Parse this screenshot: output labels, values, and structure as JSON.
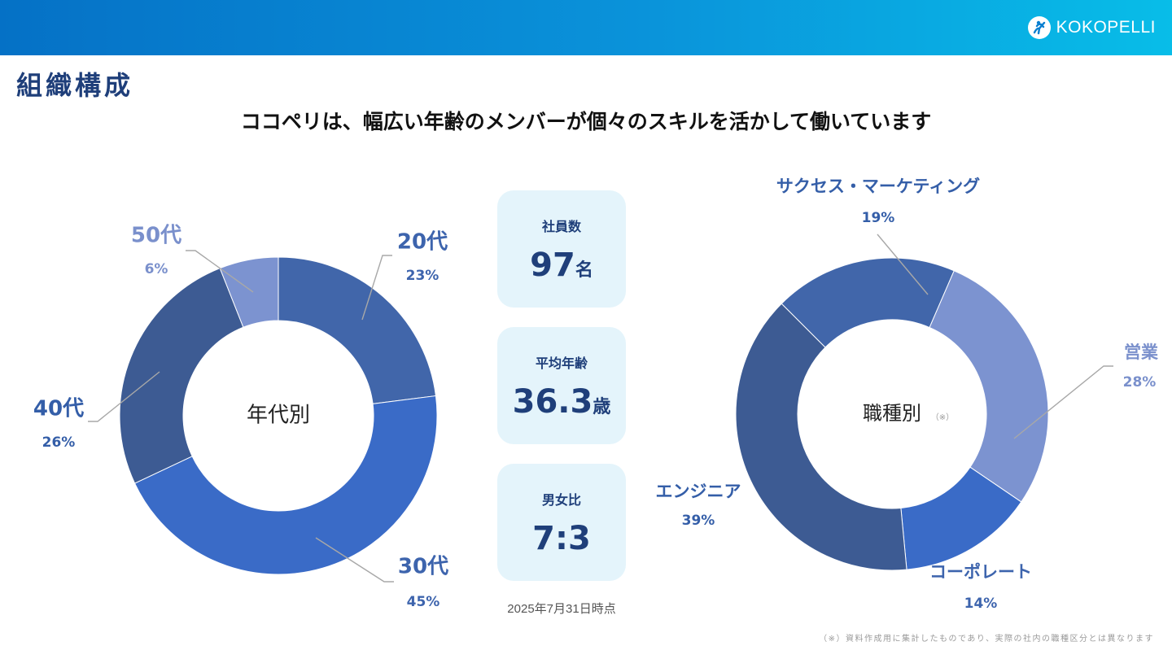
{
  "header": {
    "logo_text": "KOKOPELLI",
    "logo_icon": "kokopelli-mark-icon",
    "colors": {
      "gradient_start": "#0571c6",
      "gradient_end": "#08bde8"
    }
  },
  "page": {
    "title": "組織構成",
    "subtitle": "ココペリは、幅広い年齢のメンバーが個々のスキルを活かして働いています"
  },
  "stats": [
    {
      "label": "社員数",
      "value": "97",
      "unit": "名"
    },
    {
      "label": "平均年齢",
      "value": "36.3",
      "unit": "歳"
    },
    {
      "label": "男女比",
      "value": "7:3",
      "unit": ""
    }
  ],
  "as_of": "2025年7月31日時点",
  "footnote": "（※）資料作成用に集計したものであり、実際の社内の職種区分とは異なります",
  "chart_data": [
    {
      "type": "pie",
      "donut": true,
      "center_label": "年代別",
      "center_note": "",
      "categories": [
        "20代",
        "30代",
        "40代",
        "50代"
      ],
      "values": [
        23,
        45,
        26,
        6
      ],
      "value_labels": [
        "23%",
        "45%",
        "26%",
        "6%"
      ],
      "colors": [
        "#4166aa",
        "#3a6bc7",
        "#3d5b93",
        "#7c93d0"
      ],
      "label_colors": [
        "#3d64ad",
        "#3d64ad",
        "#345ea8",
        "#7a90cc"
      ]
    },
    {
      "type": "pie",
      "donut": true,
      "center_label": "職種別",
      "center_note": "（※）",
      "categories": [
        "サクセス・マーケティング",
        "営業",
        "コーポレート",
        "エンジニア"
      ],
      "values": [
        19,
        28,
        14,
        39
      ],
      "value_labels": [
        "19%",
        "28%",
        "14%",
        "39%"
      ],
      "colors": [
        "#4166aa",
        "#7c93d0",
        "#3a6bc7",
        "#3d5b93"
      ],
      "label_colors": [
        "#345ea8",
        "#7a90cc",
        "#3d64ad",
        "#345ea8"
      ]
    }
  ]
}
